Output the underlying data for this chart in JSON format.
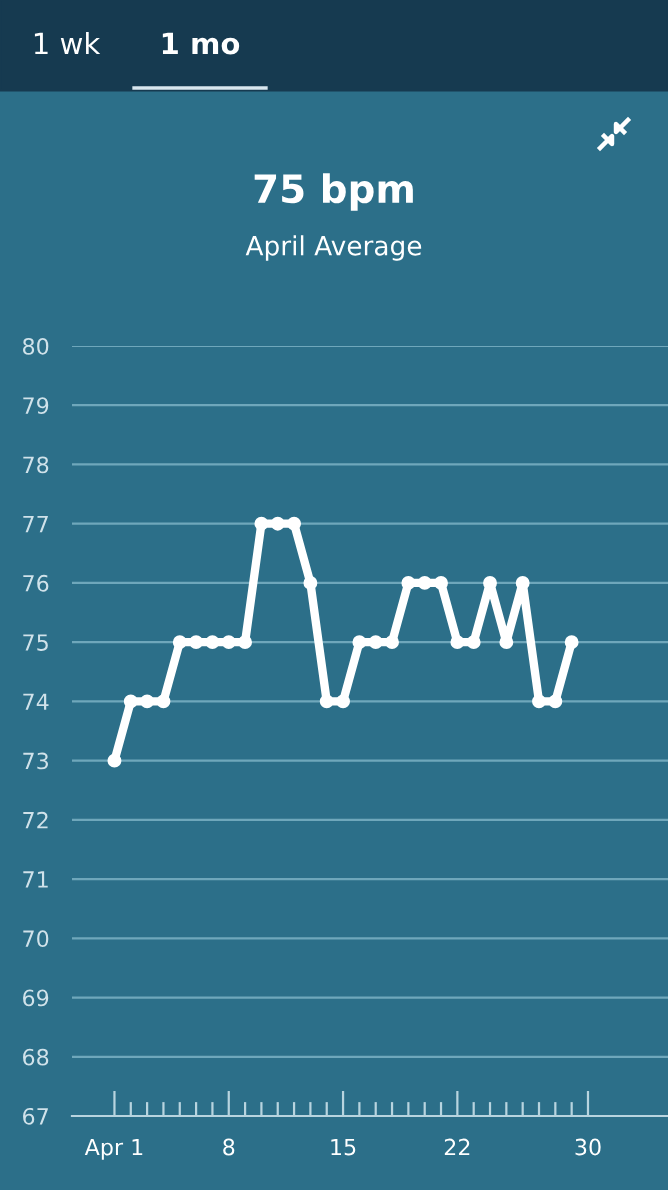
{
  "chart_data": {
    "type": "line",
    "title": "75 bpm",
    "subtitle": "April Average",
    "annotations": [
      "1 wk",
      "1 mo"
    ],
    "x": [
      1,
      2,
      3,
      4,
      5,
      6,
      7,
      8,
      9,
      10,
      11,
      12,
      13,
      14,
      15,
      16,
      17,
      18,
      19,
      20,
      21,
      22,
      23,
      24,
      25,
      26,
      27,
      28,
      29
    ],
    "series": [
      {
        "color": "#ffffff",
        "values": [
          73,
          74,
          74,
          74,
          75,
          75,
          75,
          75,
          75,
          77,
          77,
          77,
          76,
          74,
          74,
          75,
          75,
          75,
          76,
          76,
          76,
          75,
          75,
          76,
          75,
          76,
          74,
          74,
          75
        ]
      }
    ],
    "xlim": [
      -1.6,
      34.9
    ],
    "ylim": [
      67,
      80
    ],
    "xticks": [
      {
        "value": 1,
        "label": "Apr 1"
      },
      {
        "value": 2,
        "label": null
      },
      {
        "value": 3,
        "label": null
      },
      {
        "value": 4,
        "label": null
      },
      {
        "value": 5,
        "label": null
      },
      {
        "value": 6,
        "label": null
      },
      {
        "value": 7,
        "label": null
      },
      8,
      {
        "value": 9,
        "label": null
      },
      {
        "value": 10,
        "label": null
      },
      {
        "value": 11,
        "label": null
      },
      {
        "value": 12,
        "label": null
      },
      {
        "value": 13,
        "label": null
      },
      {
        "value": 14,
        "label": null
      },
      15,
      {
        "value": 16,
        "label": null
      },
      {
        "value": 17,
        "label": null
      },
      {
        "value": 18,
        "label": null
      },
      {
        "value": 19,
        "label": null
      },
      {
        "value": 20,
        "label": null
      },
      {
        "value": 21,
        "label": null
      },
      22,
      {
        "value": 23,
        "label": null
      },
      {
        "value": 24,
        "label": null
      },
      {
        "value": 25,
        "label": null
      },
      {
        "value": 26,
        "label": null
      },
      {
        "value": 27,
        "label": null
      },
      {
        "value": 28,
        "label": null
      },
      {
        "value": 29,
        "label": null
      },
      30
    ],
    "yticks": [
      67,
      68,
      69,
      70,
      71,
      72,
      73,
      74,
      75,
      76,
      77,
      78,
      79,
      80
    ],
    "grid": "y",
    "marker": "circle",
    "line_style": "solid"
  }
}
